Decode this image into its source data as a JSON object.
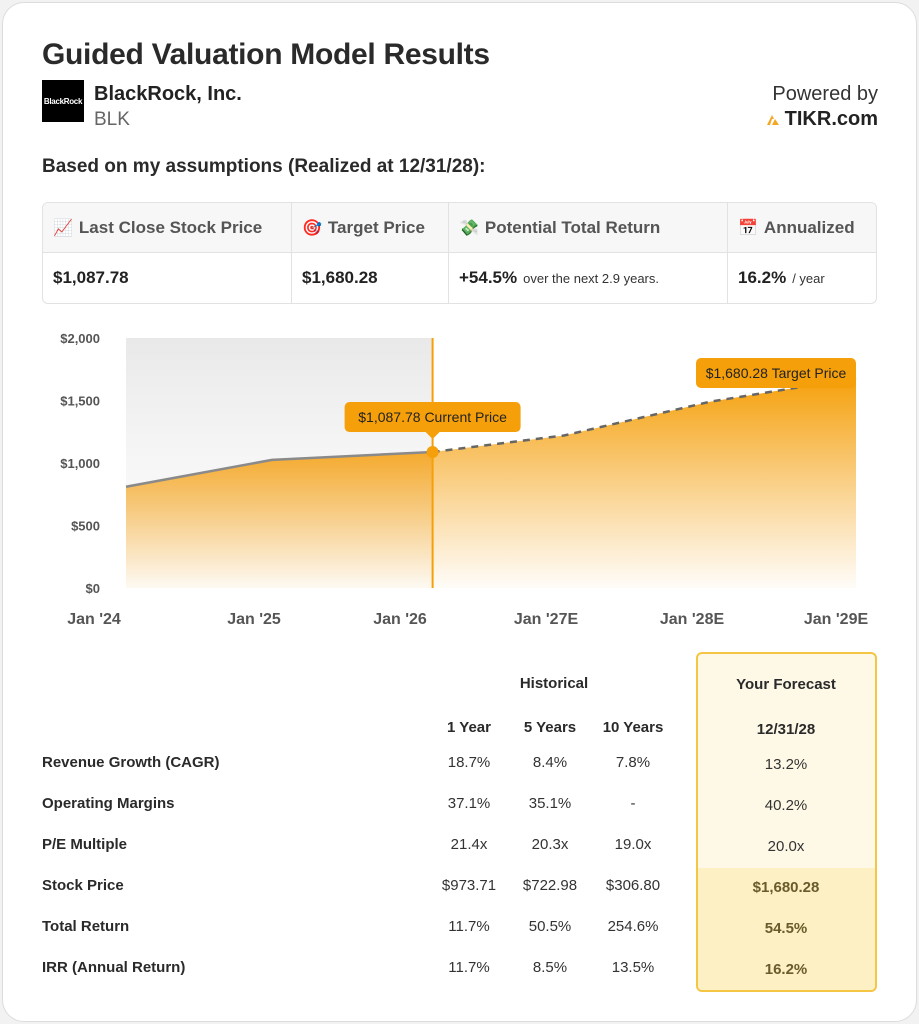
{
  "header": {
    "title": "Guided Valuation Model Results",
    "logo_text": "BlackRock",
    "company_name": "BlackRock, Inc.",
    "ticker": "BLK",
    "powered_by": "Powered by",
    "brand": "TIKR.com"
  },
  "assumptions_heading": "Based on my assumptions (Realized at 12/31/28):",
  "summary": [
    {
      "icon": "chart-increasing-icon",
      "emoji": "📈",
      "label": "Last Close Stock Price",
      "value": "$1,087.78",
      "sub": ""
    },
    {
      "icon": "target-icon",
      "emoji": "🎯",
      "label": "Target Price",
      "value": "$1,680.28",
      "sub": ""
    },
    {
      "icon": "money-icon",
      "emoji": "💸",
      "label": "Potential Total Return",
      "value": "+54.5%",
      "sub": "over the next 2.9 years."
    },
    {
      "icon": "calendar-icon",
      "emoji": "📅",
      "label": "Annualized",
      "value": "16.2%",
      "sub": "/ year"
    }
  ],
  "chart_data": {
    "type": "area",
    "x": [
      "Jan '24",
      "Jan '25",
      "Jan '26",
      "Jan '27E",
      "Jan '28E",
      "Jan '29E"
    ],
    "y_ticks": [
      "$2,000",
      "$1,500",
      "$1,000",
      "$500",
      "$0"
    ],
    "ylim": [
      0,
      2000
    ],
    "historical": [
      [
        2024.0,
        810
      ],
      [
        2025.0,
        1025
      ],
      [
        2026.1,
        1087.78
      ]
    ],
    "forecast": [
      [
        2026.1,
        1087.78
      ],
      [
        2027.0,
        1220
      ],
      [
        2028.0,
        1490
      ],
      [
        2029.0,
        1680.28
      ]
    ],
    "current_marker": {
      "x": 2026.1,
      "label": "$1,087.78 Current Price"
    },
    "target_marker": {
      "x": 2029.0,
      "label": "$1,680.28 Target Price"
    },
    "colors": {
      "accent": "#f5a623",
      "line": "#8a8a8a",
      "marker": "#f5a00a"
    }
  },
  "table": {
    "historical_label": "Historical",
    "forecast_label": "Your Forecast",
    "columns": [
      "1 Year",
      "5 Years",
      "10 Years"
    ],
    "forecast_date": "12/31/28",
    "rows": [
      {
        "label": "Revenue Growth (CAGR)",
        "values": [
          "18.7%",
          "8.4%",
          "7.8%"
        ],
        "forecast": "13.2%"
      },
      {
        "label": "Operating Margins",
        "values": [
          "37.1%",
          "35.1%",
          "-"
        ],
        "forecast": "40.2%"
      },
      {
        "label": "P/E Multiple",
        "values": [
          "21.4x",
          "20.3x",
          "19.0x"
        ],
        "forecast": "20.0x"
      },
      {
        "label": "Stock Price",
        "values": [
          "$973.71",
          "$722.98",
          "$306.80"
        ],
        "forecast": "$1,680.28"
      },
      {
        "label": "Total Return",
        "values": [
          "11.7%",
          "50.5%",
          "254.6%"
        ],
        "forecast": "54.5%"
      },
      {
        "label": "IRR (Annual Return)",
        "values": [
          "11.7%",
          "8.5%",
          "13.5%"
        ],
        "forecast": "16.2%"
      }
    ]
  }
}
